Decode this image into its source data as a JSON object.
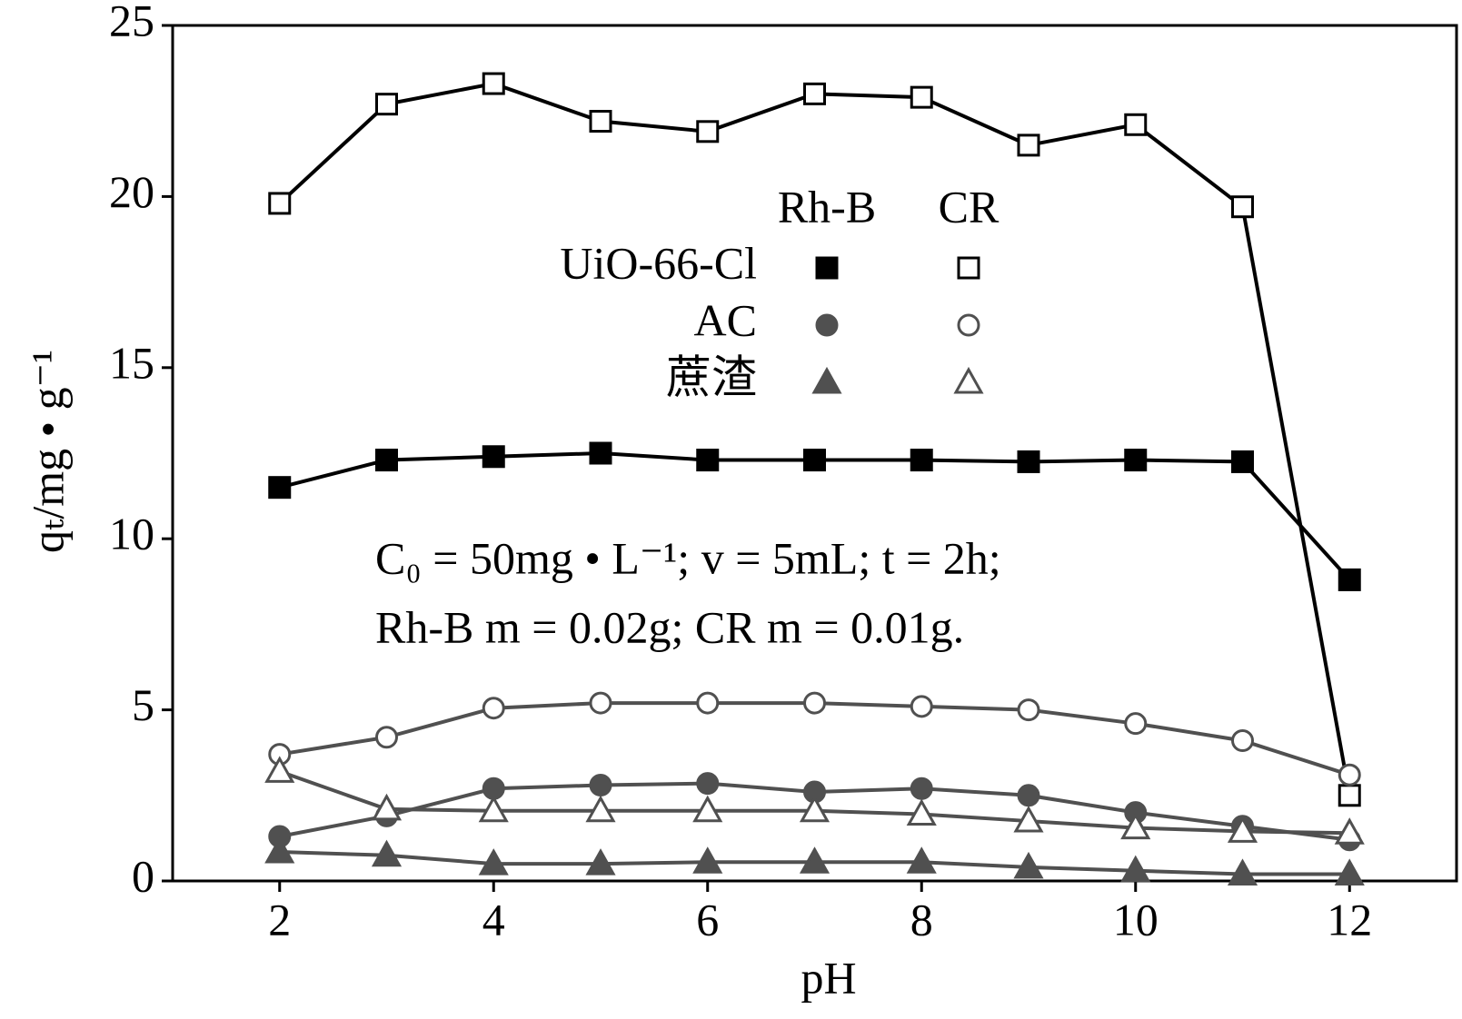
{
  "chart_data": {
    "type": "line",
    "x_label": "pH",
    "y_label": "qₜ/mg • g⁻¹",
    "x": [
      2,
      3,
      4,
      5,
      6,
      7,
      8,
      9,
      10,
      11,
      12
    ],
    "xlim": [
      1,
      13
    ],
    "xticks": [
      2,
      4,
      6,
      8,
      10,
      12
    ],
    "ylim": [
      0,
      25
    ],
    "yticks": [
      0,
      5,
      10,
      15,
      20,
      25
    ],
    "groups": [
      "Rh-B",
      "CR"
    ],
    "series": [
      {
        "name": "UiO-66-Cl",
        "marker": "square",
        "color": "#000000",
        "values": [
          [
            11.5,
            12.3,
            12.4,
            12.5,
            12.3,
            12.3,
            12.3,
            12.25,
            12.3,
            12.25,
            8.8
          ],
          [
            19.8,
            22.7,
            23.3,
            22.2,
            21.9,
            23.0,
            22.9,
            21.5,
            22.1,
            19.7,
            2.5
          ]
        ]
      },
      {
        "name": "AC",
        "marker": "circle",
        "color": "#505050",
        "values": [
          [
            1.3,
            1.9,
            2.7,
            2.8,
            2.85,
            2.6,
            2.7,
            2.5,
            2.0,
            1.6,
            1.2
          ],
          [
            3.7,
            4.2,
            5.05,
            5.2,
            5.2,
            5.2,
            5.1,
            5.0,
            4.6,
            4.1,
            3.1
          ]
        ]
      },
      {
        "name": "蔗渣",
        "marker": "triangle",
        "color": "#505050",
        "values": [
          [
            0.85,
            0.75,
            0.5,
            0.5,
            0.55,
            0.55,
            0.55,
            0.4,
            0.3,
            0.2,
            0.2
          ],
          [
            3.2,
            2.1,
            2.05,
            2.05,
            2.05,
            2.05,
            1.95,
            1.75,
            1.55,
            1.45,
            1.4
          ]
        ]
      }
    ],
    "annotations": [
      "C₀ = 50mg • L⁻¹; v = 5mL; t = 2h;",
      "Rh-B m = 0.02g; CR m = 0.01g."
    ]
  }
}
